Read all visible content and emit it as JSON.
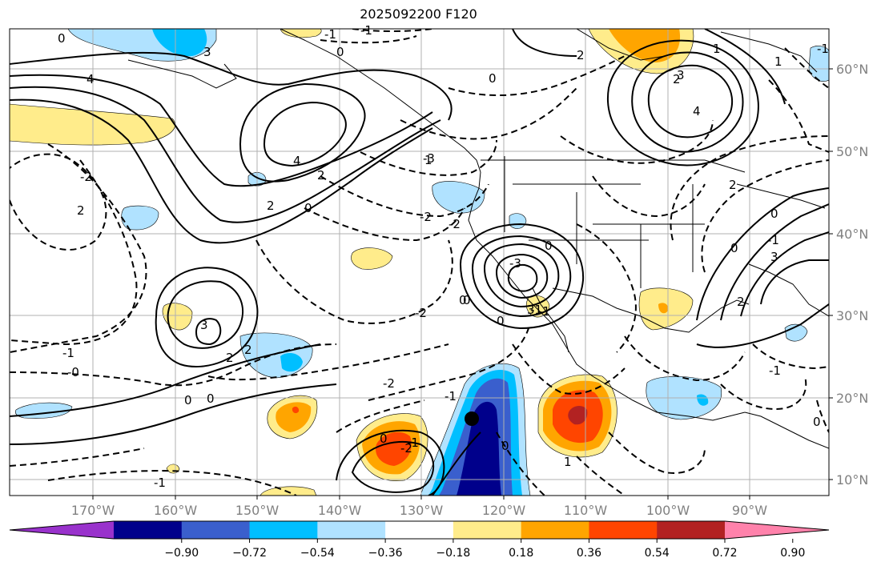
{
  "title": "2025092200 F120",
  "lat_labels": [
    "60°N",
    "50°N",
    "40°N",
    "30°N",
    "20°N",
    "10°N"
  ],
  "lon_labels": [
    "170°W",
    "160°W",
    "150°W",
    "140°W",
    "130°W",
    "120°W",
    "110°W",
    "100°W",
    "90°W"
  ],
  "colorbar": {
    "colors": [
      "#9932cc",
      "#00008b",
      "#3a5fcd",
      "#00bfff",
      "#b0e2ff",
      "#ffffff",
      "#ffec8b",
      "#ffa500",
      "#ff4500",
      "#b22222",
      "#ff82ab"
    ],
    "ticks": [
      "−0.90",
      "−0.72",
      "−0.54",
      "−0.36",
      "−0.18",
      "0.18",
      "0.36",
      "0.54",
      "0.72",
      "0.90"
    ]
  },
  "contour_labels": [
    "0",
    "-1",
    "0",
    "0",
    "-1",
    "4",
    "3",
    "4",
    "3",
    "1",
    "1",
    "0",
    "2",
    "2",
    "4",
    "2",
    "0",
    "2",
    "2",
    "-3",
    "-2",
    "-2",
    "-2",
    "0",
    "-2",
    "0",
    "-1",
    "3",
    "2",
    "2",
    "-1",
    "-0",
    "0",
    "0",
    "-2",
    "-1",
    "-3",
    "3",
    "-1",
    "0",
    "-2",
    "-1",
    "0",
    "1",
    "0",
    "-1",
    "0",
    "-1",
    "-1",
    "0",
    "-1",
    "3",
    "2",
    "0",
    "1",
    "2"
  ],
  "markers": [
    {
      "name": "storm-center",
      "lon": -123,
      "lat": 17
    }
  ]
}
